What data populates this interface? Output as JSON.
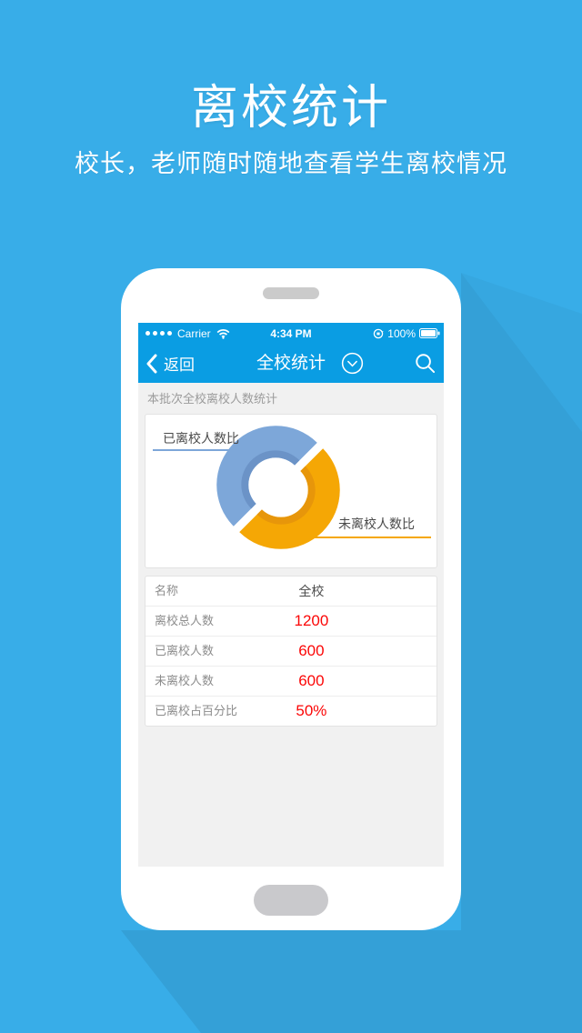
{
  "hero": {
    "title": "离校统计",
    "subtitle": "校长，老师随时随地查看学生离校情况"
  },
  "status_bar": {
    "carrier": "Carrier",
    "time": "4:34 PM",
    "battery_percent": "100%",
    "signal_dots": 4,
    "icons": [
      "signal-dots",
      "wifi-icon",
      "orientation-lock-icon",
      "battery-icon"
    ]
  },
  "nav_bar": {
    "back_label": "返回",
    "title": "全校统计",
    "icons": [
      "back-chevron-icon",
      "dropdown-circle-icon",
      "search-icon"
    ]
  },
  "section_header": "本批次全校离校人数统计",
  "chart_data": {
    "type": "pie",
    "subtype": "donut",
    "title": "本批次全校离校人数统计",
    "categories": [
      "已离校人数比",
      "未离校人数比"
    ],
    "values": [
      600,
      600
    ],
    "percentages": [
      "50%",
      "50%"
    ],
    "colors": [
      "#7da7d9",
      "#f5a705"
    ],
    "inner_edge_colors": [
      "#6b93c7",
      "#e7960a"
    ],
    "start_angle_deg": 135,
    "legend_position": "callout-lines",
    "labels": {
      "left": "已离校人数比",
      "right": "未离校人数比"
    }
  },
  "stats_table": {
    "header": {
      "name_label": "名称",
      "value_label": "全校"
    },
    "rows": [
      {
        "label": "离校总人数",
        "value": "1200"
      },
      {
        "label": "已离校人数",
        "value": "600"
      },
      {
        "label": "未离校人数",
        "value": "600"
      },
      {
        "label": "已离校占百分比",
        "value": "50%"
      }
    ]
  },
  "colors": {
    "page_background": "#38ade8",
    "app_bar_blue": "#0a9de3",
    "screen_background": "#f1f1f1",
    "value_red": "#fb0606",
    "chart_blue": "#7da7d9",
    "chart_orange": "#f5a705"
  }
}
